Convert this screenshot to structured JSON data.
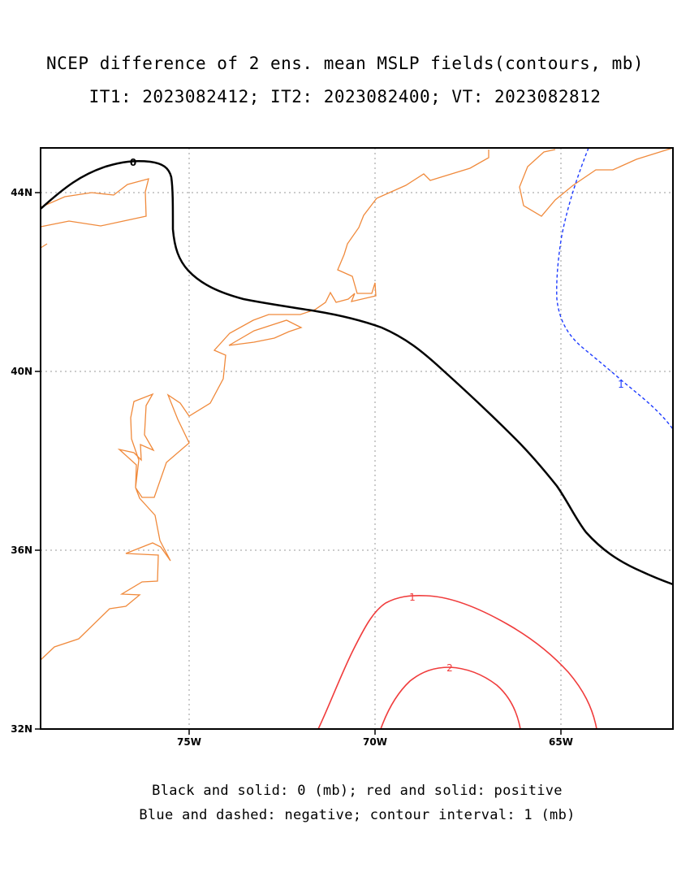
{
  "title": {
    "line1": "NCEP difference of 2 ens. mean MSLP fields(contours, mb)",
    "line2": "IT1: 2023082412; IT2: 2023082400; VT: 2023082812"
  },
  "axes": {
    "x_ticks": [
      "75W",
      "70W",
      "65W"
    ],
    "y_ticks": [
      "44N",
      "40N",
      "36N",
      "32N"
    ]
  },
  "map": {
    "extent_lon": [
      -79,
      -62
    ],
    "extent_lat": [
      32,
      45
    ],
    "grid": true,
    "coastline_color": "#f08a3c"
  },
  "contours": {
    "zero": {
      "label": "0",
      "color": "#000000",
      "style": "solid"
    },
    "positive": [
      {
        "label": "1",
        "color": "#f03c3c",
        "style": "solid"
      },
      {
        "label": "2",
        "color": "#f03c3c",
        "style": "solid"
      }
    ],
    "negative": [
      {
        "label": "1",
        "color": "#1e3cff",
        "style": "dashed"
      }
    ]
  },
  "caption": {
    "line1": "Black and solid: 0 (mb); red and solid: positive",
    "line2": "Blue and dashed: negative; contour interval: 1 (mb)"
  }
}
